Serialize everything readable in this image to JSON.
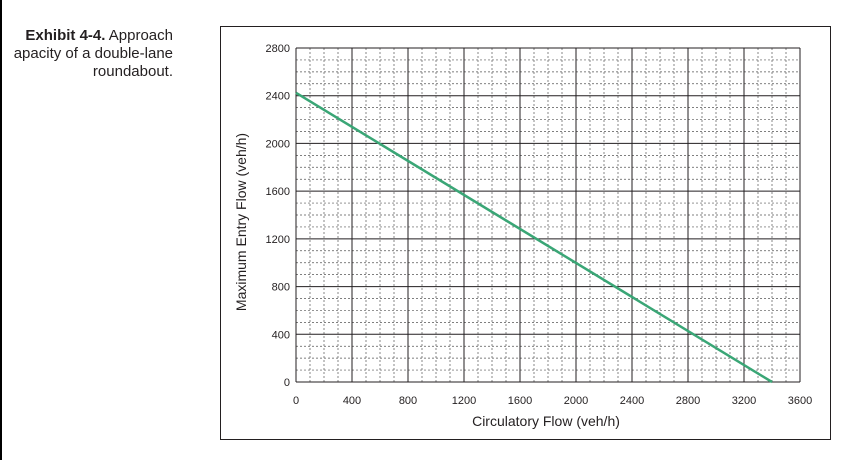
{
  "caption": {
    "label": "Exhibit 4-4.",
    "text_line1": "Approach",
    "text_line2": "apacity of a double-lane",
    "text_line3": "roundabout."
  },
  "chart_data": {
    "type": "line",
    "title": "",
    "xlabel": "Circulatory Flow (veh/h)",
    "ylabel": "Maximum Entry Flow (veh/h)",
    "xlim": [
      0,
      3600
    ],
    "ylim": [
      0,
      2800
    ],
    "xticks": [
      0,
      400,
      800,
      1200,
      1600,
      2000,
      2400,
      2800,
      3200,
      3600
    ],
    "yticks": [
      0,
      400,
      800,
      1200,
      1600,
      2000,
      2400,
      2800
    ],
    "grid": true,
    "series": [
      {
        "color": "#3aa676",
        "x": [
          0,
          3400
        ],
        "y": [
          2424,
          0
        ]
      }
    ]
  }
}
